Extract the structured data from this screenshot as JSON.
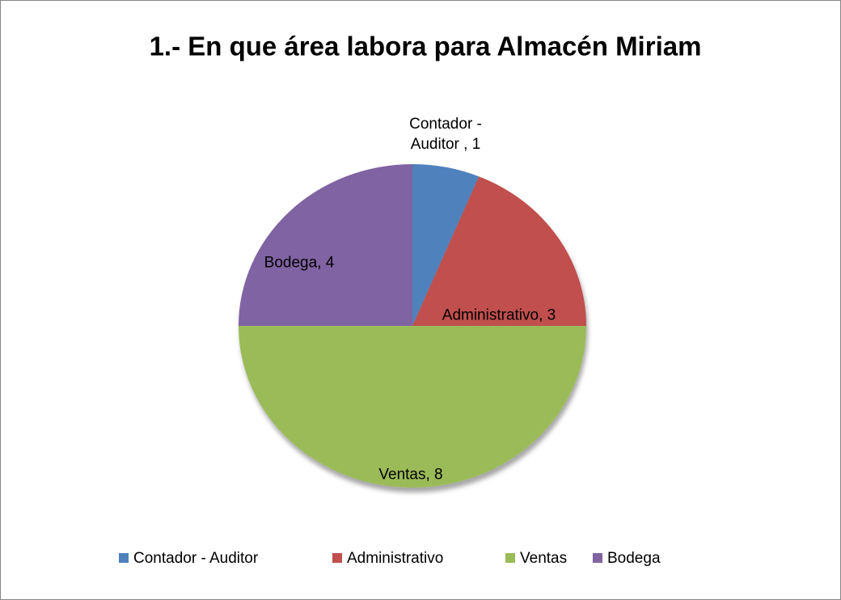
{
  "chart_data": {
    "type": "pie",
    "title": "1.- En que área labora para Almacén Miriam",
    "categories": [
      "Contador - Auditor",
      "Administrativo",
      "Ventas",
      "Bodega"
    ],
    "values": [
      1,
      3,
      8,
      4
    ],
    "value_labels": [
      "Contador - Auditor , 1",
      "Administrativo, 3",
      "Ventas, 8",
      "Bodega, 4"
    ],
    "colors": [
      "#4f81bd",
      "#c0504d",
      "#9bbb59",
      "#8064a2"
    ],
    "legend": "bottom"
  }
}
